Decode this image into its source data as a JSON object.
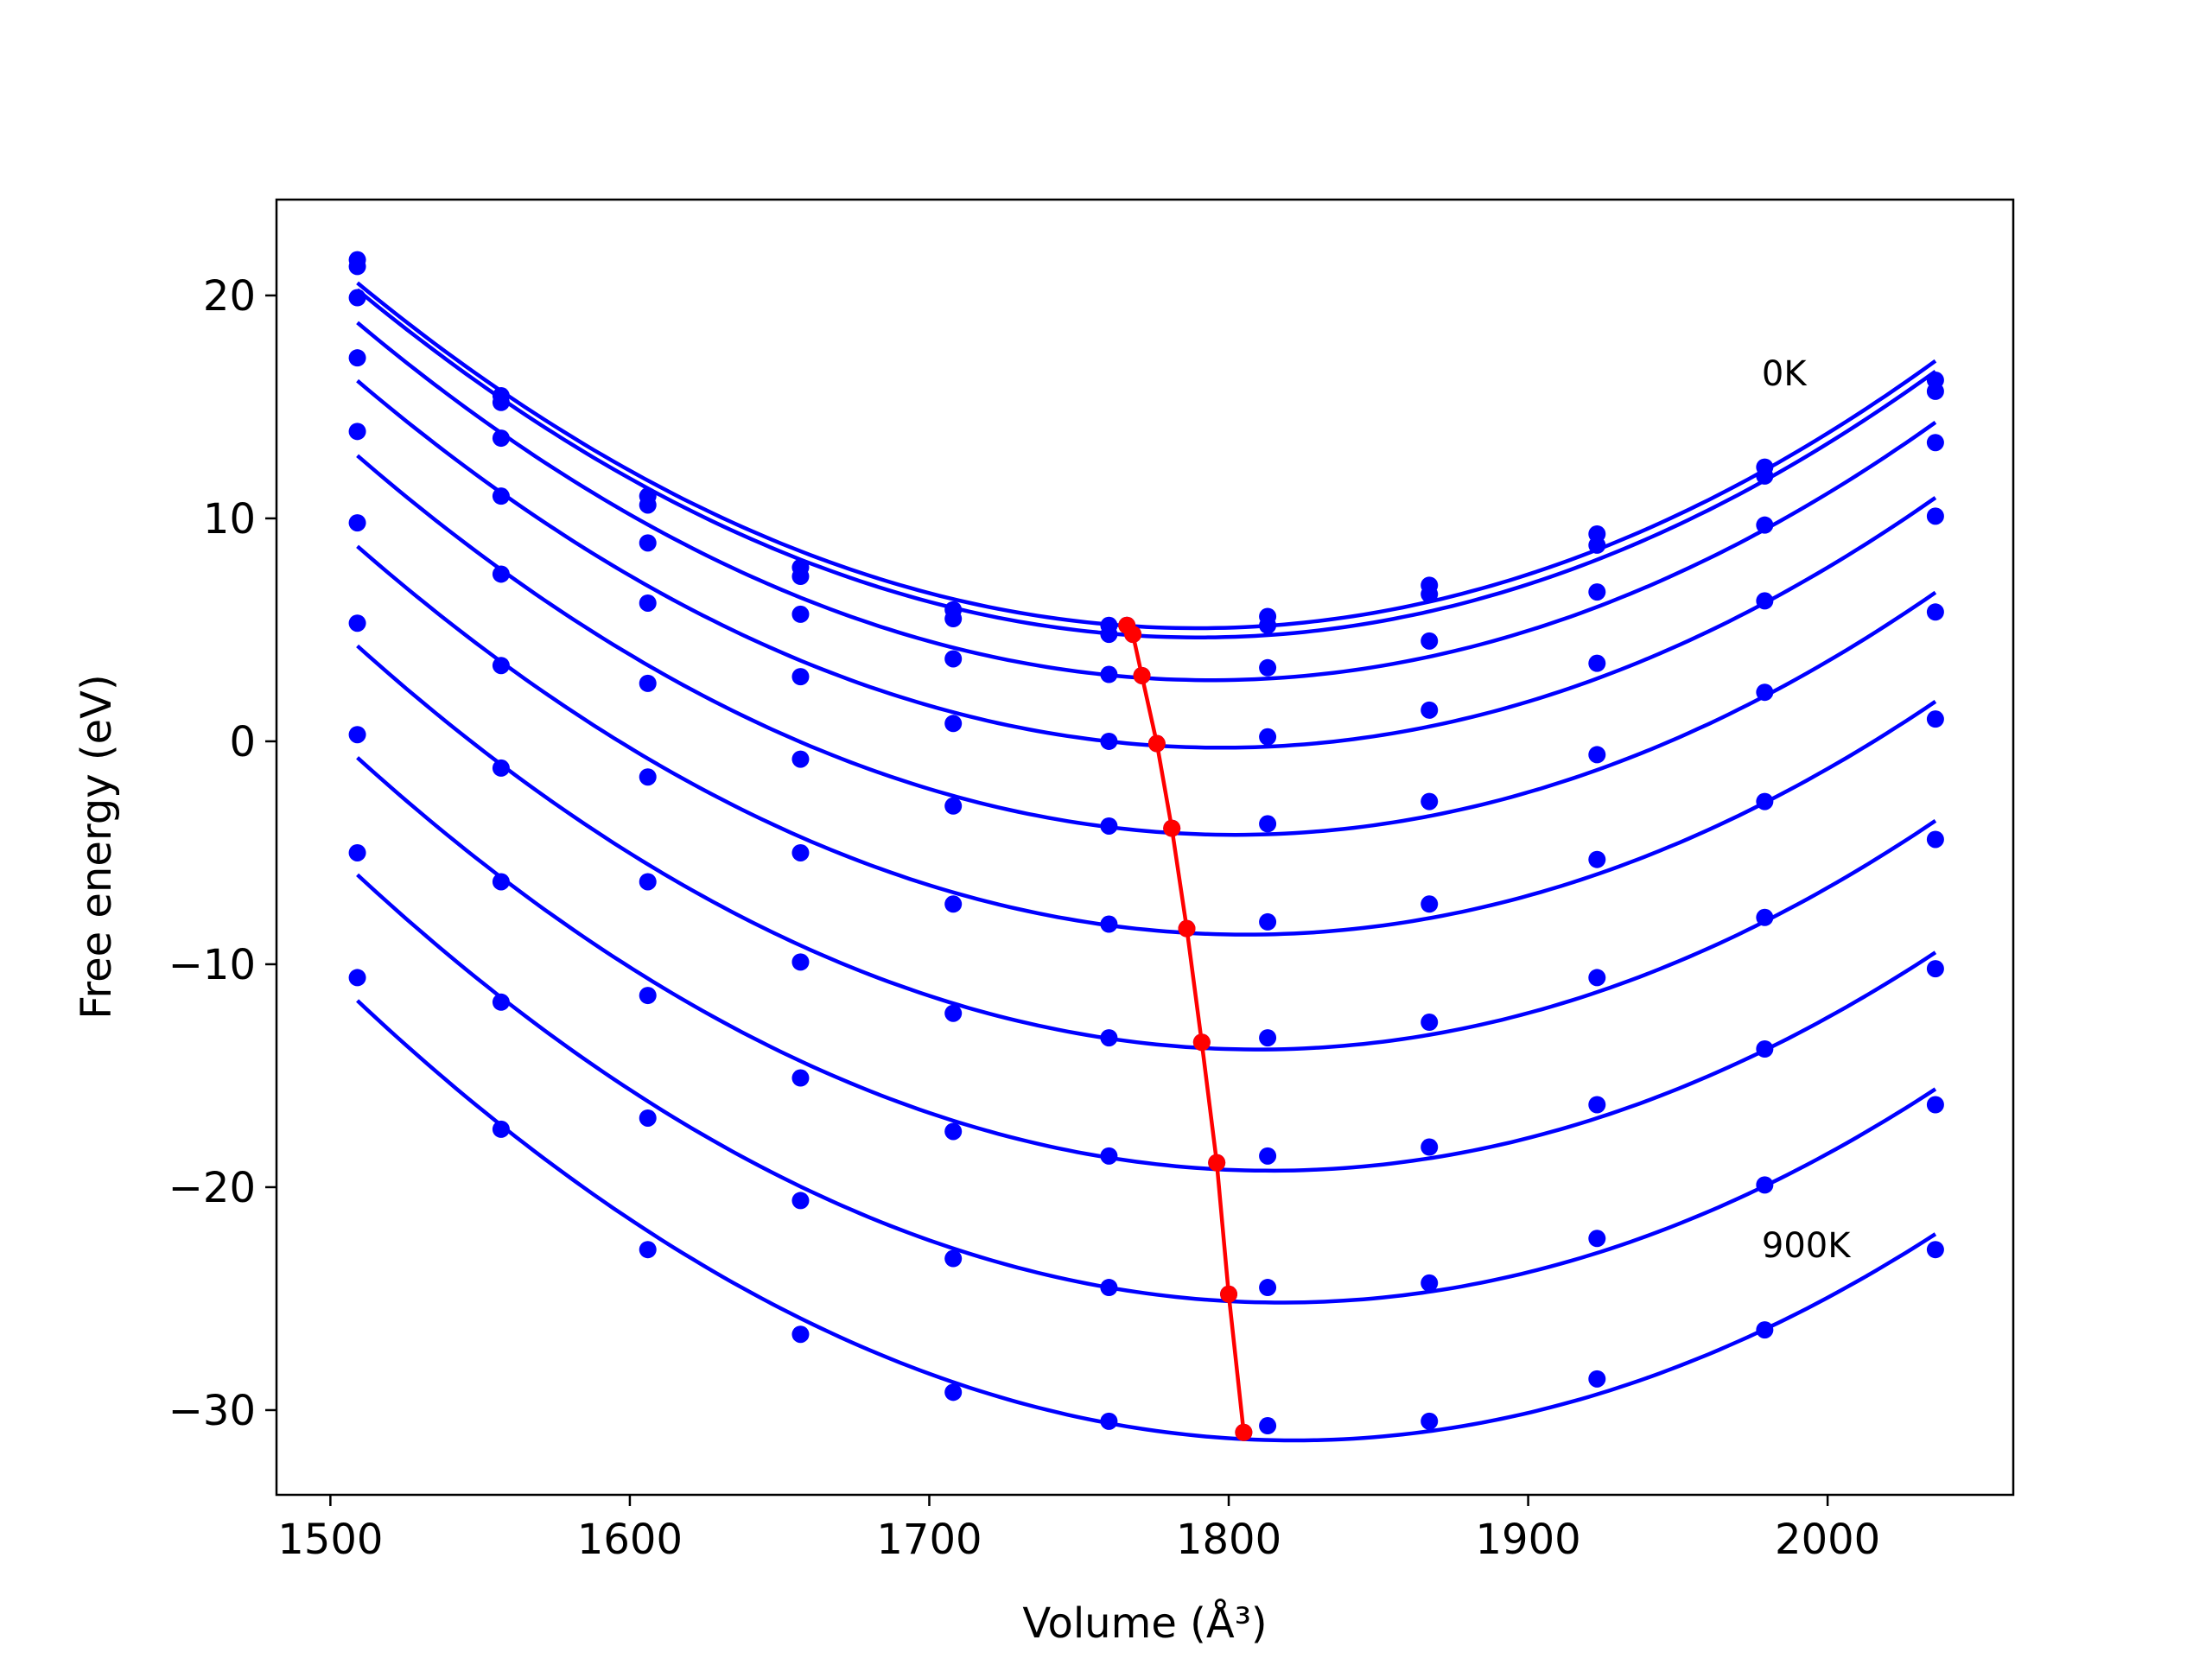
{
  "chart_data": {
    "type": "line",
    "xlabel": "Volume (Å³)",
    "ylabel": "Free energy (eV)",
    "xlim": [
      1482,
      2062
    ],
    "ylim": [
      -33.8,
      24.3
    ],
    "grid": false,
    "xticks": [
      1500,
      1600,
      1700,
      1800,
      1900,
      2000
    ],
    "xtick_labels": [
      "1500",
      "1600",
      "1700",
      "1800",
      "1900",
      "2000"
    ],
    "yticks": [
      20,
      10,
      0,
      -10,
      -20,
      -30
    ],
    "ytick_labels": [
      "20",
      "10",
      "0",
      "−10",
      "−20",
      "−30"
    ],
    "x": [
      1509,
      1557,
      1606,
      1657,
      1708,
      1760,
      1813,
      1867,
      1923,
      1979,
      2036
    ],
    "series": [
      {
        "color": "#0000ff",
        "values": [
          21.6,
          15.5,
          11.0,
          7.8,
          5.9,
          5.2,
          5.6,
          7.0,
          9.3,
          12.3,
          16.2
        ],
        "fit_min": [
          1766,
          5.2
        ]
      },
      {
        "color": "#0000ff",
        "values": [
          21.3,
          15.2,
          10.6,
          7.4,
          5.5,
          4.8,
          5.2,
          6.6,
          8.8,
          11.9,
          15.7
        ],
        "fit_min": [
          1768,
          4.8
        ]
      },
      {
        "color": "#0000ff",
        "values": [
          19.9,
          13.6,
          8.9,
          5.7,
          3.7,
          3.0,
          3.3,
          4.5,
          6.7,
          9.7,
          13.4
        ],
        "fit_min": [
          1771,
          2.95
        ]
      },
      {
        "color": "#0000ff",
        "values": [
          17.2,
          11.0,
          6.2,
          2.9,
          0.8,
          0.0,
          0.2,
          1.4,
          3.5,
          6.3,
          10.1
        ],
        "fit_min": [
          1776,
          -0.1
        ]
      },
      {
        "color": "#0000ff",
        "values": [
          13.9,
          7.5,
          2.6,
          -0.8,
          -2.9,
          -3.8,
          -3.7,
          -2.7,
          -0.6,
          2.2,
          5.8
        ],
        "fit_min": [
          1781,
          -3.9
        ]
      },
      {
        "color": "#0000ff",
        "values": [
          9.8,
          3.4,
          -1.6,
          -5.0,
          -7.3,
          -8.2,
          -8.1,
          -7.3,
          -5.3,
          -2.7,
          1.0
        ],
        "fit_min": [
          1786,
          -8.4
        ]
      },
      {
        "color": "#0000ff",
        "values": [
          5.3,
          -1.2,
          -6.3,
          -9.9,
          -12.2,
          -13.3,
          -13.3,
          -12.6,
          -10.6,
          -7.9,
          -4.4
        ],
        "fit_min": [
          1791,
          -13.5
        ]
      },
      {
        "color": "#0000ff",
        "values": [
          0.3,
          -6.3,
          -11.4,
          -15.1,
          -17.5,
          -18.6,
          -18.6,
          -18.2,
          -16.3,
          -13.8,
          -10.2
        ],
        "fit_min": [
          1796,
          -18.9
        ]
      },
      {
        "color": "#0000ff",
        "values": [
          -5.0,
          -11.7,
          -16.9,
          -20.6,
          -23.2,
          -24.5,
          -24.5,
          -24.3,
          -22.3,
          -19.9,
          -16.3
        ],
        "fit_min": [
          1800,
          -24.8
        ]
      },
      {
        "color": "#0000ff",
        "values": [
          -10.6,
          -17.4,
          -22.8,
          -26.6,
          -29.2,
          -30.5,
          -30.7,
          -30.5,
          -28.6,
          -26.4,
          -22.8
        ],
        "fit_min": [
          1805,
          -31.0
        ]
      }
    ],
    "minimum_line": {
      "color": "#ff0000",
      "x": [
        1766,
        1768,
        1771,
        1776,
        1781,
        1786,
        1791,
        1796,
        1800,
        1805
      ],
      "y": [
        5.2,
        4.8,
        2.95,
        -0.1,
        -3.9,
        -8.4,
        -13.5,
        -18.9,
        -24.8,
        -31.0
      ]
    },
    "annotations": [
      {
        "text": "0K",
        "x": 1978,
        "y": 16.5
      },
      {
        "text": "900K",
        "x": 1978,
        "y": -22.6
      }
    ]
  }
}
